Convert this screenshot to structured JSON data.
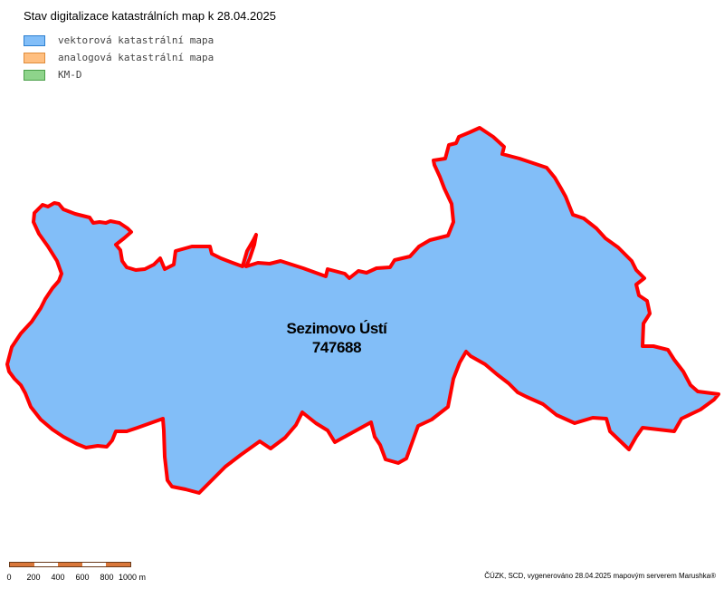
{
  "map": {
    "title": "Stav digitalizace katastrálních map k 28.04.2025",
    "legend": [
      {
        "label": "vektorová katastrální mapa",
        "fill": "#82bef8",
        "border": "#2b7fd0"
      },
      {
        "label": "analogová katastrální mapa",
        "fill": "#ffbf80",
        "border": "#e08c3a"
      },
      {
        "label": "KM-D",
        "fill": "#8ed48b",
        "border": "#4a9f48"
      }
    ],
    "area": {
      "name": "Sezimovo Ústí",
      "code": "747688",
      "fill": "#82bef8",
      "outline": "#ff0000"
    },
    "scale": {
      "ticks": [
        "0",
        "200",
        "400",
        "600",
        "800",
        "1000 m"
      ]
    },
    "footer": "ČÚZK, SCD, vygenerováno 28.04.2025 mapovým serverem Marushka®"
  }
}
